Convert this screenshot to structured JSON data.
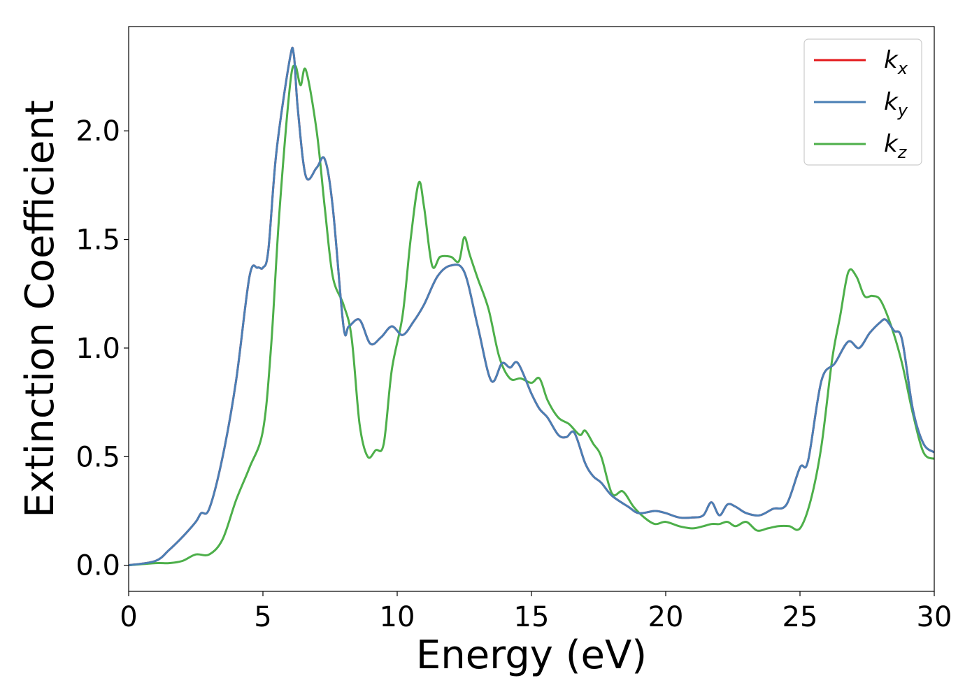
{
  "chart_data": {
    "type": "line",
    "xlabel": "Energy (eV)",
    "ylabel": "Extinction Coefficient",
    "xlim": [
      0,
      30
    ],
    "ylim": [
      -0.12,
      2.48
    ],
    "grid": false,
    "legend_position": "top-right",
    "x_ticks": [
      "0",
      "5",
      "10",
      "15",
      "20",
      "25",
      "30"
    ],
    "y_ticks": [
      "0.0",
      "0.5",
      "1.0",
      "1.5",
      "2.0"
    ],
    "series": [
      {
        "name": "k_x",
        "label_base": "k",
        "label_sub": "x",
        "color": "#e41a1c",
        "x": [
          0,
          1,
          1.5,
          2,
          2.5,
          2.7,
          3,
          3.5,
          4,
          4.5,
          4.8,
          5,
          5.2,
          5.5,
          6,
          6.15,
          6.3,
          6.6,
          7,
          7.3,
          7.6,
          8,
          8.2,
          8.6,
          9,
          9.4,
          9.8,
          10.2,
          10.6,
          11,
          11.5,
          12,
          12.5,
          13,
          13.5,
          13.9,
          14.2,
          14.5,
          15,
          15.3,
          15.6,
          16,
          16.3,
          16.6,
          17,
          17.3,
          17.6,
          18,
          18.6,
          19,
          19.6,
          20,
          20.5,
          21,
          21.4,
          21.7,
          22,
          22.3,
          22.6,
          23,
          23.5,
          24,
          24.5,
          25,
          25.3,
          25.8,
          26.3,
          26.8,
          27.2,
          27.6,
          28,
          28.2,
          28.5,
          28.8,
          29.2,
          29.6,
          30
        ],
        "y": [
          0,
          0.02,
          0.07,
          0.13,
          0.2,
          0.24,
          0.26,
          0.5,
          0.85,
          1.33,
          1.37,
          1.37,
          1.45,
          1.9,
          2.33,
          2.35,
          2.1,
          1.79,
          1.83,
          1.87,
          1.65,
          1.1,
          1.1,
          1.13,
          1.02,
          1.05,
          1.1,
          1.06,
          1.12,
          1.2,
          1.33,
          1.38,
          1.35,
          1.1,
          0.85,
          0.93,
          0.91,
          0.93,
          0.79,
          0.72,
          0.68,
          0.6,
          0.59,
          0.61,
          0.47,
          0.41,
          0.38,
          0.32,
          0.27,
          0.24,
          0.25,
          0.24,
          0.22,
          0.22,
          0.23,
          0.29,
          0.23,
          0.28,
          0.27,
          0.24,
          0.23,
          0.26,
          0.28,
          0.45,
          0.48,
          0.85,
          0.93,
          1.03,
          1.0,
          1.07,
          1.12,
          1.13,
          1.08,
          1.04,
          0.72,
          0.56,
          0.52
        ]
      },
      {
        "name": "k_y",
        "label_base": "k",
        "label_sub": "y",
        "color": "#4a7fb5",
        "x": [
          0,
          1,
          1.5,
          2,
          2.5,
          2.7,
          3,
          3.5,
          4,
          4.5,
          4.8,
          5,
          5.2,
          5.5,
          6,
          6.15,
          6.3,
          6.6,
          7,
          7.3,
          7.6,
          8,
          8.2,
          8.6,
          9,
          9.4,
          9.8,
          10.2,
          10.6,
          11,
          11.5,
          12,
          12.5,
          13,
          13.5,
          13.9,
          14.2,
          14.5,
          15,
          15.3,
          15.6,
          16,
          16.3,
          16.6,
          17,
          17.3,
          17.6,
          18,
          18.6,
          19,
          19.6,
          20,
          20.5,
          21,
          21.4,
          21.7,
          22,
          22.3,
          22.6,
          23,
          23.5,
          24,
          24.5,
          25,
          25.3,
          25.8,
          26.3,
          26.8,
          27.2,
          27.6,
          28,
          28.2,
          28.5,
          28.8,
          29.2,
          29.6,
          30
        ],
        "y": [
          0,
          0.02,
          0.07,
          0.13,
          0.2,
          0.24,
          0.26,
          0.5,
          0.85,
          1.33,
          1.37,
          1.37,
          1.45,
          1.9,
          2.33,
          2.35,
          2.1,
          1.79,
          1.83,
          1.87,
          1.65,
          1.1,
          1.1,
          1.13,
          1.02,
          1.05,
          1.1,
          1.06,
          1.12,
          1.2,
          1.33,
          1.38,
          1.35,
          1.1,
          0.85,
          0.93,
          0.91,
          0.93,
          0.79,
          0.72,
          0.68,
          0.6,
          0.59,
          0.61,
          0.47,
          0.41,
          0.38,
          0.32,
          0.27,
          0.24,
          0.25,
          0.24,
          0.22,
          0.22,
          0.23,
          0.29,
          0.23,
          0.28,
          0.27,
          0.24,
          0.23,
          0.26,
          0.28,
          0.45,
          0.48,
          0.85,
          0.93,
          1.03,
          1.0,
          1.07,
          1.12,
          1.13,
          1.08,
          1.04,
          0.72,
          0.56,
          0.52
        ]
      },
      {
        "name": "k_z",
        "label_base": "k",
        "label_sub": "z",
        "color": "#4daf4a",
        "x": [
          0,
          1,
          1.5,
          2,
          2.5,
          3,
          3.5,
          4,
          4.5,
          5,
          5.3,
          5.6,
          6,
          6.2,
          6.4,
          6.6,
          7,
          7.3,
          7.6,
          8,
          8.3,
          8.6,
          8.9,
          9.2,
          9.5,
          9.8,
          10.2,
          10.5,
          10.8,
          11,
          11.3,
          11.6,
          12,
          12.3,
          12.5,
          12.7,
          13,
          13.4,
          13.8,
          14.2,
          14.6,
          15,
          15.3,
          15.6,
          16,
          16.4,
          16.8,
          17,
          17.3,
          17.6,
          18,
          18.4,
          18.8,
          19.2,
          19.6,
          20,
          20.5,
          21,
          21.4,
          21.7,
          22,
          22.3,
          22.6,
          23,
          23.4,
          23.8,
          24.2,
          24.6,
          25,
          25.4,
          25.8,
          26.2,
          26.5,
          26.8,
          27.1,
          27.4,
          27.7,
          28,
          28.4,
          28.8,
          29.2,
          29.6,
          30
        ],
        "y": [
          0,
          0.01,
          0.01,
          0.02,
          0.05,
          0.05,
          0.12,
          0.3,
          0.45,
          0.62,
          1.0,
          1.6,
          2.2,
          2.3,
          2.21,
          2.28,
          2.0,
          1.65,
          1.33,
          1.2,
          1.05,
          0.65,
          0.5,
          0.53,
          0.56,
          0.9,
          1.15,
          1.5,
          1.76,
          1.65,
          1.38,
          1.42,
          1.42,
          1.4,
          1.51,
          1.43,
          1.32,
          1.18,
          0.96,
          0.86,
          0.86,
          0.84,
          0.86,
          0.76,
          0.68,
          0.65,
          0.6,
          0.62,
          0.56,
          0.5,
          0.33,
          0.34,
          0.27,
          0.22,
          0.19,
          0.2,
          0.18,
          0.17,
          0.18,
          0.19,
          0.19,
          0.2,
          0.18,
          0.2,
          0.16,
          0.17,
          0.18,
          0.18,
          0.17,
          0.3,
          0.55,
          0.95,
          1.15,
          1.35,
          1.33,
          1.24,
          1.24,
          1.22,
          1.1,
          0.93,
          0.7,
          0.52,
          0.49
        ]
      }
    ]
  }
}
